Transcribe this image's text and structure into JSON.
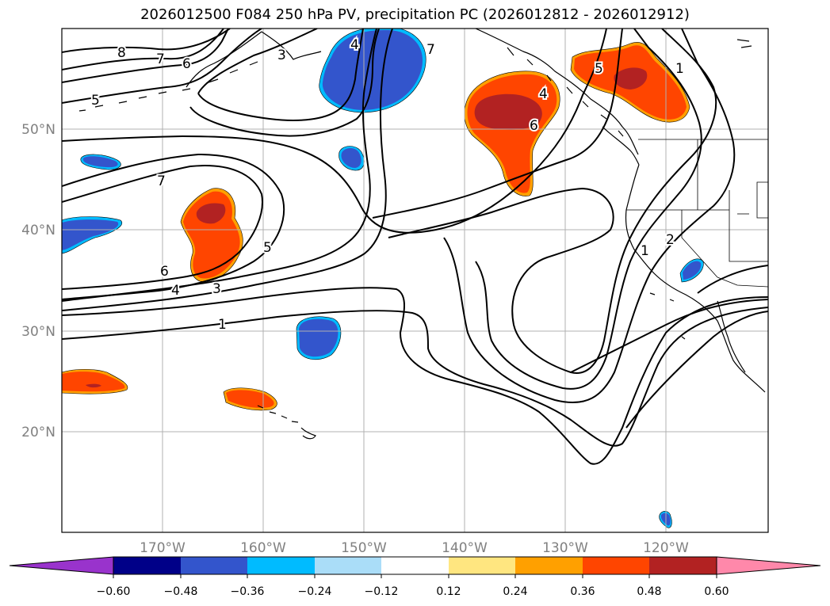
{
  "title": "2026012500 F084 250 hPa PV, precipitation PC (2026012812 - 2026012912)",
  "latitude_labels": [
    "50°N",
    "40°N",
    "30°N",
    "20°N"
  ],
  "longitude_labels": [
    "170°W",
    "160°W",
    "150°W",
    "140°W",
    "130°W",
    "120°W"
  ],
  "colorbar": {
    "tick_labels": [
      "−0.60",
      "−0.48",
      "−0.36",
      "−0.24",
      "−0.12",
      "0.12",
      "0.24",
      "0.36",
      "0.48",
      "0.60"
    ],
    "colors": [
      "#9933cc",
      "#000088",
      "#3355cc",
      "#00bbff",
      "#aaddf8",
      "#ffffff",
      "#ffe680",
      "#ffa000",
      "#ff4500",
      "#b22222",
      "#ff88aa"
    ]
  },
  "contour_labels": [
    "8",
    "7",
    "6",
    "5",
    "3",
    "4",
    "7",
    "4",
    "1",
    "5",
    "6",
    "7",
    "6",
    "5",
    "4",
    "3",
    "1",
    "1",
    "2"
  ],
  "colors": {
    "contour": "#000000",
    "coast": "#000000",
    "grid": "#b0b0b0",
    "negative_fill": "#3355cc",
    "negative_edge": "#00bbff",
    "positive_fill": "#ff4500",
    "positive_core": "#b22222",
    "positive_edge": "#ffa000"
  }
}
